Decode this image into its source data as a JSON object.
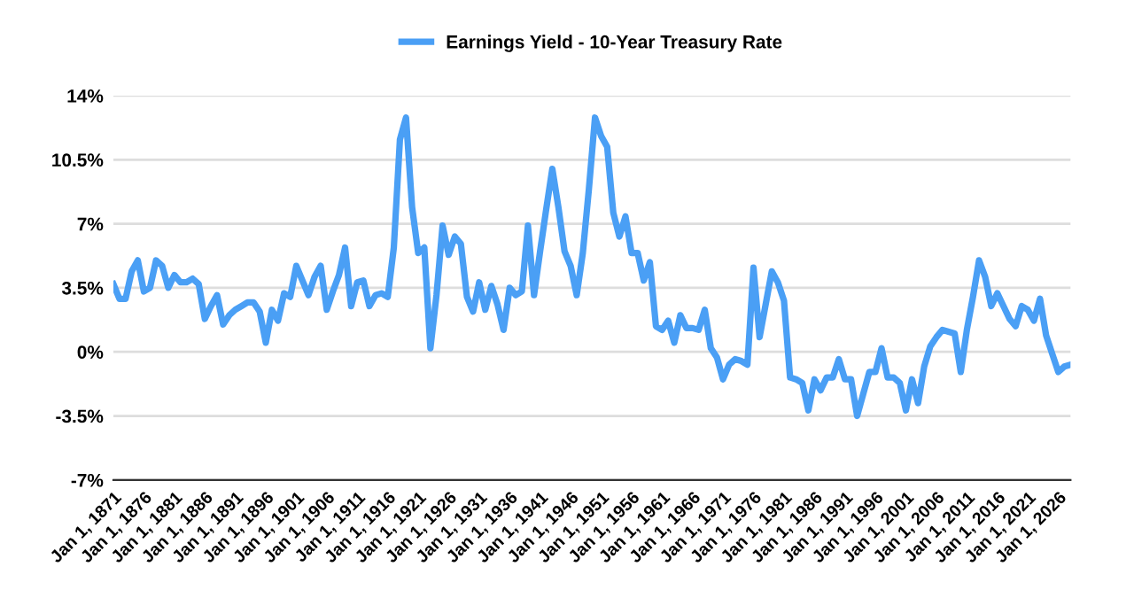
{
  "chart_data": {
    "type": "line",
    "legend": "top",
    "grid": "y",
    "marker": "none",
    "line_style": "solid",
    "ylim": [
      -7,
      14
    ],
    "yticks": [
      {
        "value": -7,
        "label": "-7%"
      },
      {
        "value": -3.5,
        "label": "-3.5%"
      },
      {
        "value": 0,
        "label": "0%"
      },
      {
        "value": 3.5,
        "label": "3.5%"
      },
      {
        "value": 7,
        "label": "7%"
      },
      {
        "value": 10.5,
        "label": "10.5%"
      },
      {
        "value": 14,
        "label": "14%"
      }
    ],
    "categories": [
      "Jan 1, 1871",
      null,
      null,
      null,
      null,
      "Jan 1, 1876",
      null,
      null,
      null,
      null,
      "Jan 1, 1881",
      null,
      null,
      null,
      null,
      "Jan 1, 1886",
      null,
      null,
      null,
      null,
      "Jan 1, 1891",
      null,
      null,
      null,
      null,
      "Jan 1, 1896",
      null,
      null,
      null,
      null,
      "Jan 1, 1901",
      null,
      null,
      null,
      null,
      "Jan 1, 1906",
      null,
      null,
      null,
      null,
      "Jan 1, 1911",
      null,
      null,
      null,
      null,
      "Jan 1, 1916",
      null,
      null,
      null,
      null,
      "Jan 1, 1921",
      null,
      null,
      null,
      null,
      "Jan 1, 1926",
      null,
      null,
      null,
      null,
      "Jan 1, 1931",
      null,
      null,
      null,
      null,
      "Jan 1, 1936",
      null,
      null,
      null,
      null,
      "Jan 1, 1941",
      null,
      null,
      null,
      null,
      "Jan 1, 1946",
      null,
      null,
      null,
      null,
      "Jan 1, 1951",
      null,
      null,
      null,
      null,
      "Jan 1, 1956",
      null,
      null,
      null,
      null,
      "Jan 1, 1961",
      null,
      null,
      null,
      null,
      "Jan 1, 1966",
      null,
      null,
      null,
      null,
      "Jan 1, 1971",
      null,
      null,
      null,
      null,
      "Jan 1, 1976",
      null,
      null,
      null,
      null,
      "Jan 1, 1981",
      null,
      null,
      null,
      null,
      "Jan 1, 1986",
      null,
      null,
      null,
      null,
      "Jan 1, 1991",
      null,
      null,
      null,
      null,
      "Jan 1, 1996",
      null,
      null,
      null,
      null,
      "Jan 1, 2001",
      null,
      null,
      null,
      null,
      "Jan 1, 2006",
      null,
      null,
      null,
      null,
      "Jan 1, 2011",
      null,
      null,
      null,
      null,
      "Jan 1, 2016",
      null,
      null,
      null,
      null,
      "Jan 1, 2021",
      null,
      null,
      null,
      null,
      "Jan 1, 2026",
      null,
      null
    ],
    "series": [
      {
        "name": "Earnings Yield - 10-Year Treasury Rate",
        "color": "#4a9ff5",
        "values": [
          3.7,
          2.9,
          2.9,
          4.4,
          5.0,
          3.3,
          3.5,
          5.0,
          4.7,
          3.5,
          4.2,
          3.8,
          3.8,
          4.0,
          3.7,
          1.8,
          2.5,
          3.1,
          1.5,
          2.0,
          2.3,
          2.5,
          2.7,
          2.7,
          2.2,
          0.5,
          2.3,
          1.7,
          3.2,
          3.0,
          4.7,
          3.9,
          3.1,
          4.1,
          4.7,
          2.3,
          3.3,
          4.2,
          5.7,
          2.5,
          3.8,
          3.9,
          2.5,
          3.1,
          3.2,
          3.0,
          5.7,
          11.6,
          12.8,
          7.9,
          5.4,
          5.7,
          0.2,
          3.1,
          6.9,
          5.3,
          6.3,
          5.9,
          3.0,
          2.2,
          3.8,
          2.3,
          3.6,
          2.6,
          1.2,
          3.5,
          3.1,
          3.3,
          6.9,
          3.1,
          5.5,
          7.8,
          10.0,
          7.9,
          5.5,
          4.7,
          3.1,
          5.4,
          8.9,
          12.8,
          11.8,
          11.2,
          7.6,
          6.3,
          7.4,
          5.4,
          5.4,
          3.9,
          4.9,
          1.4,
          1.2,
          1.7,
          0.5,
          2.0,
          1.3,
          1.3,
          1.2,
          2.3,
          0.2,
          -0.3,
          -1.5,
          -0.7,
          -0.4,
          -0.5,
          -0.7,
          4.6,
          0.8,
          2.6,
          4.4,
          3.8,
          2.8,
          -1.4,
          -1.5,
          -1.7,
          -3.2,
          -1.5,
          -2.1,
          -1.4,
          -1.4,
          -0.4,
          -1.5,
          -1.5,
          -3.5,
          -2.3,
          -1.1,
          -1.1,
          0.2,
          -1.4,
          -1.4,
          -1.7,
          -3.2,
          -1.5,
          -2.8,
          -0.8,
          0.3,
          0.8,
          1.2,
          1.1,
          1.0,
          -1.1,
          1.2,
          3.0,
          5.0,
          4.1,
          2.5,
          3.2,
          2.5,
          1.8,
          1.4,
          2.5,
          2.3,
          1.7,
          2.9,
          0.9,
          -0.1,
          -1.1,
          -0.8,
          -0.7
        ]
      }
    ]
  }
}
